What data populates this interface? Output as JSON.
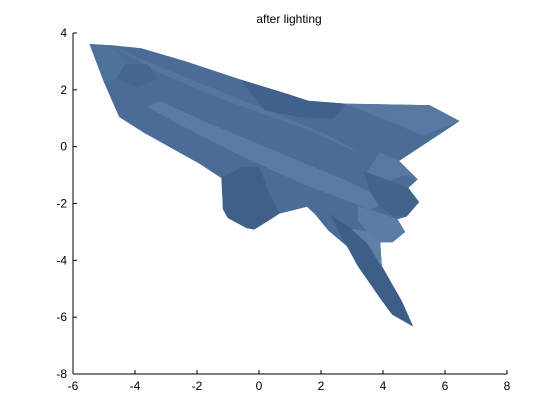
{
  "chart_data": {
    "type": "patch",
    "title": "after lighting",
    "xlabel": "",
    "ylabel": "",
    "xlim": [
      -6,
      8
    ],
    "ylim": [
      -8,
      4
    ],
    "x_ticks": [
      -6,
      -4,
      -2,
      0,
      2,
      4,
      6,
      8
    ],
    "y_ticks": [
      -8,
      -6,
      -4,
      -2,
      0,
      2,
      4
    ],
    "x_tick_labels": [
      "-6",
      "-4",
      "-2",
      "0",
      "2",
      "4",
      "6",
      "8"
    ],
    "y_tick_labels": [
      "-8",
      "-6",
      "-4",
      "-2",
      "0",
      "2",
      "4"
    ],
    "grid": false,
    "box": "off",
    "face_color": "#4a6c96",
    "object": "space shuttle",
    "shape": {
      "outline": [
        [
          -5.45,
          3.6
        ],
        [
          -4.7,
          3.55
        ],
        [
          -3.8,
          3.45
        ],
        [
          -2.4,
          3.0
        ],
        [
          -0.6,
          2.35
        ],
        [
          0.9,
          1.85
        ],
        [
          1.6,
          1.6
        ],
        [
          2.8,
          1.5
        ],
        [
          5.5,
          1.45
        ],
        [
          6.45,
          0.9
        ],
        [
          4.5,
          -0.5
        ],
        [
          5.1,
          -1.15
        ],
        [
          4.8,
          -1.45
        ],
        [
          5.15,
          -1.95
        ],
        [
          4.75,
          -2.45
        ],
        [
          4.45,
          -2.55
        ],
        [
          4.7,
          -3.0
        ],
        [
          4.3,
          -3.35
        ],
        [
          3.9,
          -3.35
        ],
        [
          3.95,
          -4.2
        ],
        [
          4.6,
          -5.45
        ],
        [
          4.95,
          -6.3
        ],
        [
          4.3,
          -5.9
        ],
        [
          3.9,
          -5.3
        ],
        [
          3.2,
          -4.2
        ],
        [
          2.85,
          -3.5
        ],
        [
          2.25,
          -2.95
        ],
        [
          1.8,
          -2.35
        ],
        [
          1.55,
          -2.1
        ],
        [
          0.65,
          -2.35
        ],
        [
          -0.15,
          -2.9
        ],
        [
          -0.4,
          -2.85
        ],
        [
          -1.0,
          -2.5
        ],
        [
          -1.15,
          -2.2
        ],
        [
          -1.2,
          -1.1
        ],
        [
          -1.9,
          -0.6
        ],
        [
          -3.7,
          0.5
        ],
        [
          -4.5,
          1.05
        ],
        [
          -5.0,
          2.3
        ],
        [
          -5.45,
          3.6
        ]
      ],
      "panels": [
        {
          "shade": "#55779f",
          "points": [
            [
              -4.7,
              3.55
            ],
            [
              -3.2,
              2.6
            ],
            [
              -1.0,
              1.6
            ],
            [
              1.6,
              0.6
            ],
            [
              3.2,
              -0.2
            ],
            [
              2.2,
              0.4
            ],
            [
              0.2,
              1.3
            ],
            [
              -2.3,
              2.4
            ],
            [
              -4.1,
              3.2
            ]
          ]
        },
        {
          "shade": "#3f618b",
          "points": [
            [
              -0.6,
              2.35
            ],
            [
              0.9,
              1.85
            ],
            [
              1.6,
              1.6
            ],
            [
              2.8,
              1.5
            ],
            [
              2.4,
              1.0
            ],
            [
              1.3,
              1.05
            ],
            [
              0.2,
              1.3
            ]
          ]
        },
        {
          "shade": "#5a7ca4",
          "points": [
            [
              -3.2,
              1.6
            ],
            [
              -1.8,
              0.9
            ],
            [
              0.6,
              -0.2
            ],
            [
              2.8,
              -1.2
            ],
            [
              4.2,
              -1.9
            ],
            [
              3.6,
              -2.2
            ],
            [
              1.4,
              -1.3
            ],
            [
              -0.6,
              -0.3
            ],
            [
              -2.4,
              0.7
            ],
            [
              -3.6,
              1.4
            ]
          ]
        },
        {
          "shade": "#3e6089",
          "points": [
            [
              -1.2,
              -1.1
            ],
            [
              -0.6,
              -0.75
            ],
            [
              0.0,
              -0.7
            ],
            [
              0.3,
              -1.6
            ],
            [
              0.65,
              -2.35
            ],
            [
              -0.15,
              -2.9
            ],
            [
              -0.4,
              -2.85
            ],
            [
              -1.0,
              -2.5
            ],
            [
              -1.15,
              -2.2
            ]
          ]
        },
        {
          "shade": "#57799f",
          "points": [
            [
              3.9,
              -0.2
            ],
            [
              4.5,
              -0.5
            ],
            [
              5.1,
              -1.15
            ],
            [
              4.7,
              -1.0
            ],
            [
              4.2,
              -1.2
            ],
            [
              3.5,
              -0.9
            ]
          ]
        },
        {
          "shade": "#41638c",
          "points": [
            [
              3.4,
              -0.9
            ],
            [
              4.2,
              -1.2
            ],
            [
              4.8,
              -1.45
            ],
            [
              5.15,
              -1.95
            ],
            [
              4.75,
              -2.45
            ],
            [
              4.3,
              -2.4
            ],
            [
              3.9,
              -2.1
            ],
            [
              3.6,
              -1.6
            ]
          ]
        },
        {
          "shade": "#5b7da5",
          "points": [
            [
              3.2,
              -2.1
            ],
            [
              3.8,
              -2.3
            ],
            [
              4.45,
              -2.55
            ],
            [
              4.7,
              -3.0
            ],
            [
              4.3,
              -3.35
            ],
            [
              3.9,
              -3.35
            ],
            [
              3.5,
              -3.0
            ],
            [
              3.2,
              -2.6
            ]
          ]
        },
        {
          "shade": "#3d5f87",
          "points": [
            [
              2.3,
              -2.4
            ],
            [
              3.0,
              -2.9
            ],
            [
              3.5,
              -3.4
            ],
            [
              3.95,
              -4.2
            ],
            [
              4.6,
              -5.45
            ],
            [
              4.95,
              -6.3
            ],
            [
              4.3,
              -5.9
            ],
            [
              3.9,
              -5.3
            ],
            [
              3.2,
              -4.2
            ],
            [
              2.85,
              -3.5
            ]
          ]
        },
        {
          "shade": "#5f81a8",
          "points": [
            [
              3.0,
              -2.9
            ],
            [
              3.5,
              -3.0
            ],
            [
              3.9,
              -3.35
            ],
            [
              3.95,
              -4.2
            ],
            [
              3.5,
              -3.4
            ]
          ]
        },
        {
          "shade": "#4f729a",
          "points": [
            [
              -5.45,
              3.6
            ],
            [
              -4.7,
              3.55
            ],
            [
              -4.3,
              2.9
            ],
            [
              -4.6,
              2.4
            ],
            [
              -5.0,
              2.3
            ]
          ]
        },
        {
          "shade": "#44668f",
          "points": [
            [
              -4.6,
              2.4
            ],
            [
              -4.3,
              2.9
            ],
            [
              -3.6,
              2.9
            ],
            [
              -3.3,
              2.4
            ],
            [
              -3.9,
              2.1
            ]
          ]
        },
        {
          "shade": "#58799f",
          "points": [
            [
              5.5,
              1.45
            ],
            [
              6.45,
              0.9
            ],
            [
              5.3,
              0.4
            ],
            [
              4.2,
              0.9
            ],
            [
              2.8,
              1.5
            ]
          ]
        }
      ]
    }
  }
}
